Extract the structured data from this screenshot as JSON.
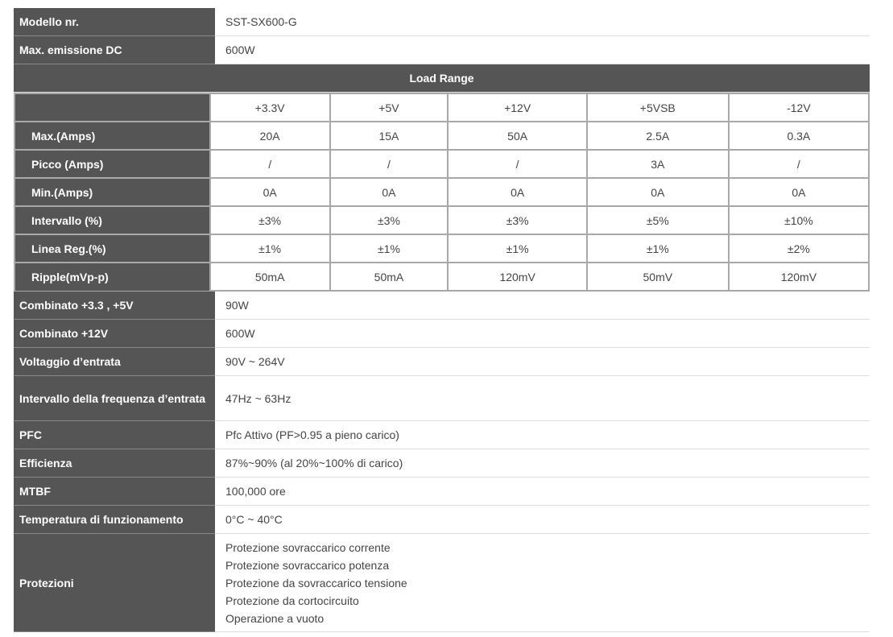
{
  "top": [
    {
      "label": "Modello nr.",
      "value": "SST-SX600-G"
    },
    {
      "label": "Max. emissione DC",
      "value": "600W"
    }
  ],
  "load_range": {
    "title": "Load Range",
    "columns": [
      "+3.3V",
      "+5V",
      "+12V",
      "+5VSB",
      "-12V"
    ],
    "rows": [
      {
        "label": "Max.(Amps)",
        "values": [
          "20A",
          "15A",
          "50A",
          "2.5A",
          "0.3A"
        ]
      },
      {
        "label": "Picco (Amps)",
        "values": [
          "/",
          "/",
          "/",
          "3A",
          "/"
        ]
      },
      {
        "label": "Min.(Amps)",
        "values": [
          "0A",
          "0A",
          "0A",
          "0A",
          "0A"
        ]
      },
      {
        "label": "Intervallo (%)",
        "values": [
          "±3%",
          "±3%",
          "±3%",
          "±5%",
          "±10%"
        ]
      },
      {
        "label": "Linea Reg.(%)",
        "values": [
          "±1%",
          "±1%",
          "±1%",
          "±1%",
          "±2%"
        ]
      },
      {
        "label": "Ripple(mVp-p)",
        "values": [
          "50mA",
          "50mA",
          "120mV",
          "50mV",
          "120mV"
        ]
      }
    ]
  },
  "bottom": [
    {
      "label": "Combinato +3.3 , +5V",
      "value": "90W"
    },
    {
      "label": "Combinato +12V",
      "value": "600W"
    },
    {
      "label": "Voltaggio d’entrata",
      "value": "90V ~ 264V"
    },
    {
      "label": "Intervallo della frequenza d’entrata",
      "value": "47Hz ~ 63Hz"
    },
    {
      "label": "PFC",
      "value": "Pfc Attivo (PF>0.95 a pieno carico)"
    },
    {
      "label": "Efficienza",
      "value": "87%~90% (al 20%~100% di carico)"
    },
    {
      "label": "MTBF",
      "value": "100,000 ore"
    },
    {
      "label": "Temperatura di funzionamento",
      "value": "0°C ~ 40°C"
    }
  ],
  "protections": {
    "label": "Protezioni",
    "items": [
      "Protezione sovraccarico corrente",
      "Protezione sovraccarico potenza",
      "Protezione da sovraccarico tensione",
      "Protezione da cortocircuito",
      "Operazione a vuoto"
    ]
  }
}
